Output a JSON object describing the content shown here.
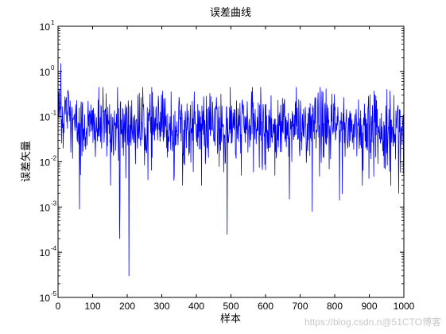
{
  "chart_data": {
    "type": "line",
    "title": "误差曲线",
    "xlabel": "样本",
    "ylabel": "误差矢量",
    "yscale": "log",
    "xlim": [
      0,
      1000
    ],
    "ylim": [
      1e-05,
      10
    ],
    "grid": false,
    "line_color": "#0000ff",
    "x_ticks": [
      "0",
      "100",
      "200",
      "300",
      "400",
      "500",
      "600",
      "700",
      "800",
      "900",
      "1000"
    ],
    "y_ticks": [
      {
        "base": "10",
        "exp": "1",
        "value": 10
      },
      {
        "base": "10",
        "exp": "0",
        "value": 1
      },
      {
        "base": "10",
        "exp": "-1",
        "value": 0.1
      },
      {
        "base": "10",
        "exp": "-2",
        "value": 0.01
      },
      {
        "base": "10",
        "exp": "-3",
        "value": 0.001
      },
      {
        "base": "10",
        "exp": "-4",
        "value": 0.0001
      },
      {
        "base": "10",
        "exp": "-5",
        "value": 1e-05
      }
    ],
    "notable_points": [
      {
        "x": 1,
        "y": 0.35
      },
      {
        "x": 8,
        "y": 1.5
      },
      {
        "x": 15,
        "y": 0.02
      },
      {
        "x": 62,
        "y": 0.0009
      },
      {
        "x": 152,
        "y": 0.003
      },
      {
        "x": 178,
        "y": 0.0002
      },
      {
        "x": 205,
        "y": 3e-05
      },
      {
        "x": 260,
        "y": 0.004
      },
      {
        "x": 415,
        "y": 0.003
      },
      {
        "x": 489,
        "y": 0.00025
      },
      {
        "x": 735,
        "y": 0.0008
      },
      {
        "x": 880,
        "y": 0.003
      },
      {
        "x": 962,
        "y": 0.003
      },
      {
        "x": 985,
        "y": 0.002
      }
    ],
    "series": [
      {
        "n_samples": 1000,
        "typical_range": [
          0.01,
          0.3
        ],
        "median": 0.06
      }
    ]
  },
  "watermark": "https://blog.csdn.n@51CTO博客"
}
